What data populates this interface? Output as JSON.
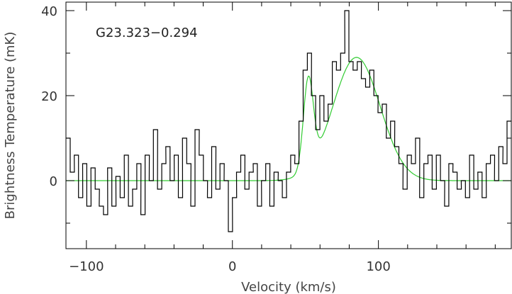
{
  "chart_data": {
    "type": "line",
    "title": "G23.323−0.294",
    "xlabel": "Velocity (km/s)",
    "ylabel": "Brightness Temperature (mK)",
    "xlim": [
      -114,
      191
    ],
    "ylim": [
      -16,
      42
    ],
    "x_ticks": [
      -100,
      0,
      100
    ],
    "x_tick_labels": [
      "−100",
      "0",
      "100"
    ],
    "y_ticks": [
      0,
      20,
      40
    ],
    "y_tick_labels": [
      "0",
      "20",
      "40"
    ],
    "grid": false,
    "colors": {
      "spectrum": "#000000",
      "fit": "#33cc33"
    },
    "series": [
      {
        "kind": "step",
        "x": [
          -114,
          -111.1,
          -108.3,
          -105.4,
          -102.6,
          -99.7,
          -96.9,
          -94,
          -91.2,
          -88.3,
          -85.5,
          -82.6,
          -79.8,
          -76.9,
          -74.1,
          -71.2,
          -68.4,
          -65.5,
          -62.7,
          -59.8,
          -57,
          -54.1,
          -51.3,
          -48.4,
          -45.6,
          -42.7,
          -39.9,
          -37,
          -34.2,
          -31.3,
          -28.5,
          -25.6,
          -22.8,
          -19.9,
          -17.1,
          -14.2,
          -11.4,
          -8.5,
          -5.7,
          -2.8,
          0,
          2.8,
          5.7,
          8.5,
          11.4,
          14.2,
          17.1,
          19.9,
          22.8,
          25.6,
          28.5,
          31.3,
          34.2,
          37,
          39.9,
          42.7,
          45.6,
          48.4,
          51.3,
          54.1,
          57,
          59.8,
          62.7,
          65.5,
          68.4,
          71.2,
          74.1,
          76.9,
          79.8,
          82.6,
          85.5,
          88.3,
          91.2,
          94,
          96.9,
          99.7,
          102.6,
          105.4,
          108.3,
          111.1,
          114,
          116.8,
          119.7,
          122.5,
          125.4,
          128.2,
          131.1,
          133.9,
          136.8,
          139.6,
          142.5,
          145.3,
          148.2,
          151,
          153.9,
          156.7,
          159.6,
          162.4,
          165.3,
          168.1,
          171,
          173.8,
          176.7,
          179.5,
          182.4,
          185.2,
          188.1
        ],
        "y": [
          10,
          2,
          6,
          -4,
          4,
          -6,
          3,
          -2,
          -6,
          -8,
          3,
          -6,
          1,
          -4,
          6,
          -6,
          -2,
          4,
          -8,
          6,
          0,
          12,
          -2,
          4,
          8,
          0,
          6,
          -4,
          10,
          4,
          -6,
          12,
          6,
          0,
          -4,
          8,
          -2,
          4,
          0,
          -12,
          -4,
          2,
          6,
          -2,
          2,
          4,
          -6,
          0,
          4,
          -6,
          2,
          0,
          -4,
          2,
          6,
          4,
          14,
          26,
          30,
          20,
          12,
          20,
          14,
          18,
          28,
          26,
          30,
          40,
          28,
          26,
          28,
          24,
          22,
          26,
          20,
          16,
          18,
          10,
          14,
          8,
          4,
          -2,
          6,
          4,
          10,
          -4,
          4,
          6,
          -2,
          6,
          0,
          -6,
          4,
          2,
          -2,
          0,
          -4,
          6,
          -2,
          2,
          -4,
          4,
          6,
          0,
          8,
          4,
          14
        ]
      },
      {
        "kind": "gaussian-fit",
        "components": [
          {
            "amplitude": 21,
            "center": 52,
            "fwhm": 8
          },
          {
            "amplitude": 29,
            "center": 85,
            "fwhm": 38
          }
        ]
      }
    ]
  }
}
